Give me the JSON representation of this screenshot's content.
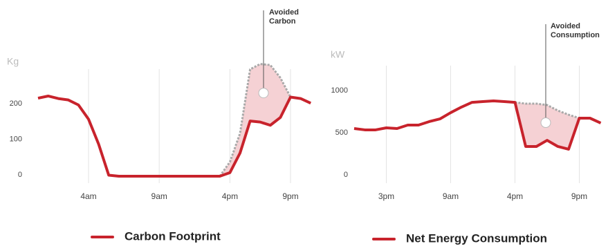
{
  "chart_data": [
    {
      "type": "line",
      "y_label": "Kg",
      "categories": [
        null,
        null,
        null,
        null,
        null,
        "4am",
        null,
        null,
        null,
        null,
        null,
        null,
        "9am",
        null,
        null,
        null,
        null,
        null,
        null,
        "4pm",
        null,
        null,
        null,
        null,
        null,
        "9pm",
        null,
        null
      ],
      "series": [
        {
          "name": "Carbon Footprint",
          "color": "#c8232c",
          "values": [
            219,
            225,
            218,
            214,
            200,
            160,
            90,
            3,
            0,
            0,
            0,
            0,
            0,
            0,
            0,
            0,
            0,
            0,
            0,
            10,
            65,
            155,
            152,
            143,
            165,
            222,
            218,
            205
          ]
        }
      ],
      "avoided": {
        "label": "Avoided Carbon",
        "color": "#a9a9a9",
        "fill": "#f3c9cc",
        "values": [
          null,
          null,
          null,
          null,
          null,
          null,
          null,
          null,
          null,
          null,
          null,
          null,
          null,
          null,
          null,
          null,
          null,
          null,
          0,
          40,
          120,
          300,
          315,
          312,
          276,
          222,
          null,
          null
        ]
      },
      "ylim": [
        0,
        320
      ],
      "yticks": [
        0,
        100,
        200
      ],
      "grid": true
    },
    {
      "type": "line",
      "y_label": "kW",
      "categories": [
        null,
        null,
        null,
        "3pm",
        null,
        null,
        null,
        null,
        null,
        "9am",
        null,
        null,
        null,
        null,
        null,
        "4pm",
        null,
        null,
        null,
        null,
        null,
        "9pm",
        null,
        null
      ],
      "series": [
        {
          "name": "Net Energy Consumption",
          "color": "#c8232c",
          "values": [
            566,
            550,
            550,
            574,
            566,
            607,
            607,
            648,
            680,
            754,
            820,
            877,
            886,
            894,
            886,
            877,
            353,
            353,
            426,
            353,
            320,
            689,
            689,
            631
          ]
        }
      ],
      "avoided": {
        "label": "Avoided Consumption",
        "color": "#a9a9a9",
        "fill": "#f3c9cc",
        "values": [
          null,
          null,
          null,
          null,
          null,
          null,
          null,
          null,
          null,
          null,
          null,
          null,
          null,
          null,
          null,
          877,
          861,
          861,
          845,
          779,
          730,
          689,
          null,
          null
        ]
      },
      "ylim": [
        0,
        1300
      ],
      "yticks": [
        0,
        500,
        1000
      ],
      "grid": true
    }
  ]
}
